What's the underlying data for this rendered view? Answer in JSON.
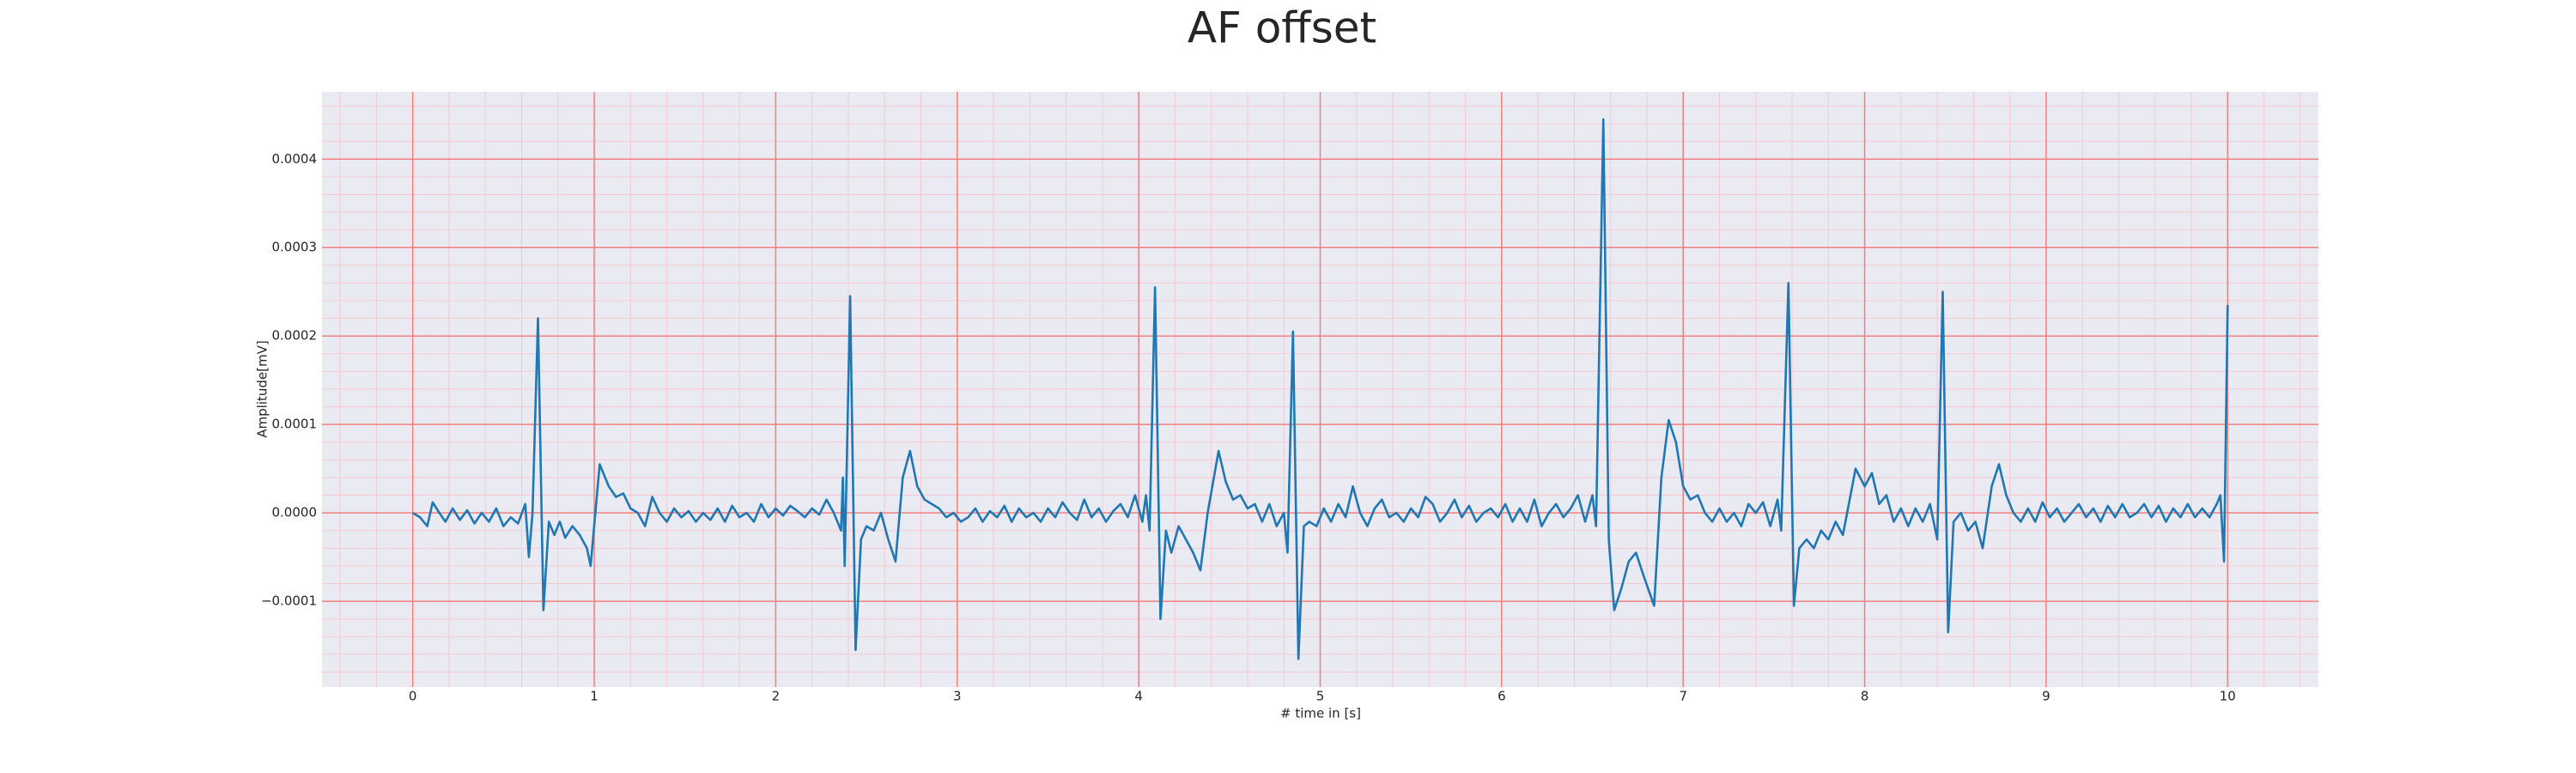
{
  "chart_data": {
    "type": "line",
    "title": "AF offset",
    "x_label": "# time in [s]",
    "y_label": "Amplitude[mV]",
    "color": "#1f77b4",
    "background": "#eaeaf2",
    "grid": true,
    "major_grid_color": "#f08080",
    "minor_grid_color": "#f6c9d2",
    "x_minor_step": 0.2,
    "y_minor_step": 2e-05,
    "xlim": [
      -0.5,
      10.5
    ],
    "ylim": [
      -0.000197,
      0.000476
    ],
    "xticks": [
      0,
      1,
      2,
      3,
      4,
      5,
      6,
      7,
      8,
      9,
      10
    ],
    "yticks": [
      {
        "value": -0.0001,
        "label": "−0.0001"
      },
      {
        "value": 0,
        "label": "0.0000"
      },
      0.0001,
      0.0002,
      0.0003,
      0.0004
    ],
    "x": [
      0.0,
      0.04,
      0.08,
      0.11,
      0.14,
      0.18,
      0.22,
      0.26,
      0.3,
      0.34,
      0.38,
      0.42,
      0.46,
      0.5,
      0.54,
      0.58,
      0.62,
      0.64,
      0.66,
      0.69,
      0.72,
      0.75,
      0.78,
      0.81,
      0.84,
      0.88,
      0.92,
      0.96,
      0.98,
      1.03,
      1.08,
      1.12,
      1.16,
      1.2,
      1.24,
      1.28,
      1.32,
      1.36,
      1.4,
      1.44,
      1.48,
      1.52,
      1.56,
      1.6,
      1.64,
      1.68,
      1.72,
      1.76,
      1.8,
      1.84,
      1.88,
      1.92,
      1.96,
      2.0,
      2.04,
      2.08,
      2.12,
      2.16,
      2.2,
      2.24,
      2.28,
      2.32,
      2.36,
      2.37,
      2.38,
      2.41,
      2.44,
      2.47,
      2.5,
      2.54,
      2.58,
      2.62,
      2.66,
      2.7,
      2.74,
      2.78,
      2.82,
      2.86,
      2.9,
      2.94,
      2.98,
      3.02,
      3.06,
      3.1,
      3.14,
      3.18,
      3.22,
      3.26,
      3.3,
      3.34,
      3.38,
      3.42,
      3.46,
      3.5,
      3.54,
      3.58,
      3.62,
      3.66,
      3.7,
      3.74,
      3.78,
      3.82,
      3.86,
      3.9,
      3.94,
      3.98,
      4.02,
      4.04,
      4.06,
      4.09,
      4.12,
      4.15,
      4.18,
      4.22,
      4.26,
      4.3,
      4.34,
      4.38,
      4.44,
      4.48,
      4.52,
      4.56,
      4.6,
      4.64,
      4.68,
      4.72,
      4.76,
      4.8,
      4.82,
      4.85,
      4.88,
      4.91,
      4.94,
      4.98,
      5.02,
      5.06,
      5.1,
      5.14,
      5.18,
      5.22,
      5.26,
      5.3,
      5.34,
      5.38,
      5.42,
      5.46,
      5.5,
      5.54,
      5.58,
      5.62,
      5.66,
      5.7,
      5.74,
      5.78,
      5.82,
      5.86,
      5.9,
      5.94,
      5.98,
      6.02,
      6.06,
      6.1,
      6.14,
      6.18,
      6.22,
      6.26,
      6.3,
      6.34,
      6.38,
      6.42,
      6.46,
      6.5,
      6.52,
      6.56,
      6.59,
      6.62,
      6.66,
      6.7,
      6.74,
      6.78,
      6.84,
      6.88,
      6.92,
      6.96,
      7.0,
      7.04,
      7.08,
      7.12,
      7.16,
      7.2,
      7.24,
      7.28,
      7.32,
      7.36,
      7.4,
      7.44,
      7.48,
      7.52,
      7.54,
      7.58,
      7.61,
      7.64,
      7.68,
      7.72,
      7.76,
      7.8,
      7.84,
      7.88,
      7.95,
      8.0,
      8.04,
      8.08,
      8.12,
      8.16,
      8.2,
      8.24,
      8.28,
      8.32,
      8.36,
      8.4,
      8.43,
      8.46,
      8.49,
      8.53,
      8.57,
      8.61,
      8.65,
      8.7,
      8.74,
      8.78,
      8.82,
      8.86,
      8.9,
      8.94,
      8.98,
      9.02,
      9.06,
      9.1,
      9.14,
      9.18,
      9.22,
      9.26,
      9.3,
      9.34,
      9.38,
      9.42,
      9.46,
      9.5,
      9.54,
      9.58,
      9.62,
      9.66,
      9.7,
      9.74,
      9.78,
      9.82,
      9.86,
      9.9,
      9.94,
      9.96,
      9.98,
      10.0
    ],
    "values": [
      0,
      -5e-06,
      -1.5e-05,
      1.2e-05,
      2e-06,
      -1e-05,
      5e-06,
      -8e-06,
      3e-06,
      -1.2e-05,
      0,
      -1e-05,
      5e-06,
      -1.5e-05,
      -5e-06,
      -1.2e-05,
      1e-05,
      -5e-05,
      0,
      0.00022,
      -0.00011,
      -1e-05,
      -2.5e-05,
      -1e-05,
      -2.8e-05,
      -1.5e-05,
      -2.5e-05,
      -4e-05,
      -6e-05,
      5.5e-05,
      3e-05,
      1.8e-05,
      2.2e-05,
      5e-06,
      0,
      -1.5e-05,
      1.8e-05,
      0,
      -1e-05,
      5e-06,
      -5e-06,
      2e-06,
      -1e-05,
      0,
      -8e-06,
      5e-06,
      -1e-05,
      8e-06,
      -5e-06,
      0,
      -1e-05,
      1e-05,
      -5e-06,
      5e-06,
      -3e-06,
      8e-06,
      2e-06,
      -5e-06,
      5e-06,
      -2e-06,
      1.5e-05,
      0,
      -2e-05,
      4e-05,
      -6e-05,
      0.000245,
      -0.000155,
      -3e-05,
      -1.5e-05,
      -2e-05,
      0,
      -3e-05,
      -5.5e-05,
      4e-05,
      7e-05,
      3e-05,
      1.5e-05,
      1e-05,
      5e-06,
      -5e-06,
      0,
      -1e-05,
      -5e-06,
      5e-06,
      -1e-05,
      2e-06,
      -5e-06,
      8e-06,
      -1e-05,
      5e-06,
      -5e-06,
      0,
      -1e-05,
      5e-06,
      -5e-06,
      1.2e-05,
      0,
      -8e-06,
      1.5e-05,
      -5e-06,
      5e-06,
      -1e-05,
      2e-06,
      1e-05,
      -5e-06,
      2e-05,
      -1e-05,
      2e-05,
      -2e-05,
      0.000255,
      -0.00012,
      -2e-05,
      -4.5e-05,
      -1.5e-05,
      -3e-05,
      -4.5e-05,
      -6.5e-05,
      0,
      7e-05,
      3.5e-05,
      1.5e-05,
      2e-05,
      5e-06,
      1e-05,
      -1e-05,
      1e-05,
      -1.5e-05,
      0,
      -4.5e-05,
      0.000205,
      -0.000165,
      -1.5e-05,
      -1e-05,
      -1.5e-05,
      5e-06,
      -1e-05,
      1e-05,
      -5e-06,
      3e-05,
      0,
      -1.5e-05,
      5e-06,
      1.5e-05,
      -5e-06,
      0,
      -1e-05,
      5e-06,
      -5e-06,
      1.8e-05,
      1e-05,
      -1e-05,
      0,
      1.5e-05,
      -5e-06,
      8e-06,
      -1e-05,
      0,
      5e-06,
      -5e-06,
      1e-05,
      -1e-05,
      5e-06,
      -1e-05,
      1.5e-05,
      -1.5e-05,
      0,
      1e-05,
      -5e-06,
      5e-06,
      2e-05,
      -1e-05,
      2e-05,
      -1.5e-05,
      0.000445,
      -3e-05,
      -0.00011,
      -8.5e-05,
      -5.5e-05,
      -4.5e-05,
      -7e-05,
      -0.000105,
      4e-05,
      0.000105,
      8e-05,
      3e-05,
      1.5e-05,
      2e-05,
      0,
      -1e-05,
      5e-06,
      -1e-05,
      0,
      -1.5e-05,
      1e-05,
      0,
      1.2e-05,
      -1.5e-05,
      1.5e-05,
      -2e-05,
      0.00026,
      -0.000105,
      -4e-05,
      -3e-05,
      -4e-05,
      -2e-05,
      -3e-05,
      -1e-05,
      -2.5e-05,
      5e-05,
      3e-05,
      4.5e-05,
      1e-05,
      2e-05,
      -1e-05,
      5e-06,
      -1.5e-05,
      5e-06,
      -1e-05,
      1e-05,
      -3e-05,
      0.00025,
      -0.000135,
      -1e-05,
      0,
      -2e-05,
      -1e-05,
      -4e-05,
      3e-05,
      5.5e-05,
      2e-05,
      0,
      -1e-05,
      5e-06,
      -1e-05,
      1.2e-05,
      -5e-06,
      5e-06,
      -1e-05,
      0,
      1e-05,
      -5e-06,
      5e-06,
      -1e-05,
      8e-06,
      -5e-06,
      1e-05,
      -5e-06,
      0,
      1e-05,
      -5e-06,
      8e-06,
      -1e-05,
      5e-06,
      -5e-06,
      1e-05,
      -5e-06,
      5e-06,
      -5e-06,
      1e-05,
      2e-05,
      -5.5e-05,
      0.000235
    ]
  }
}
